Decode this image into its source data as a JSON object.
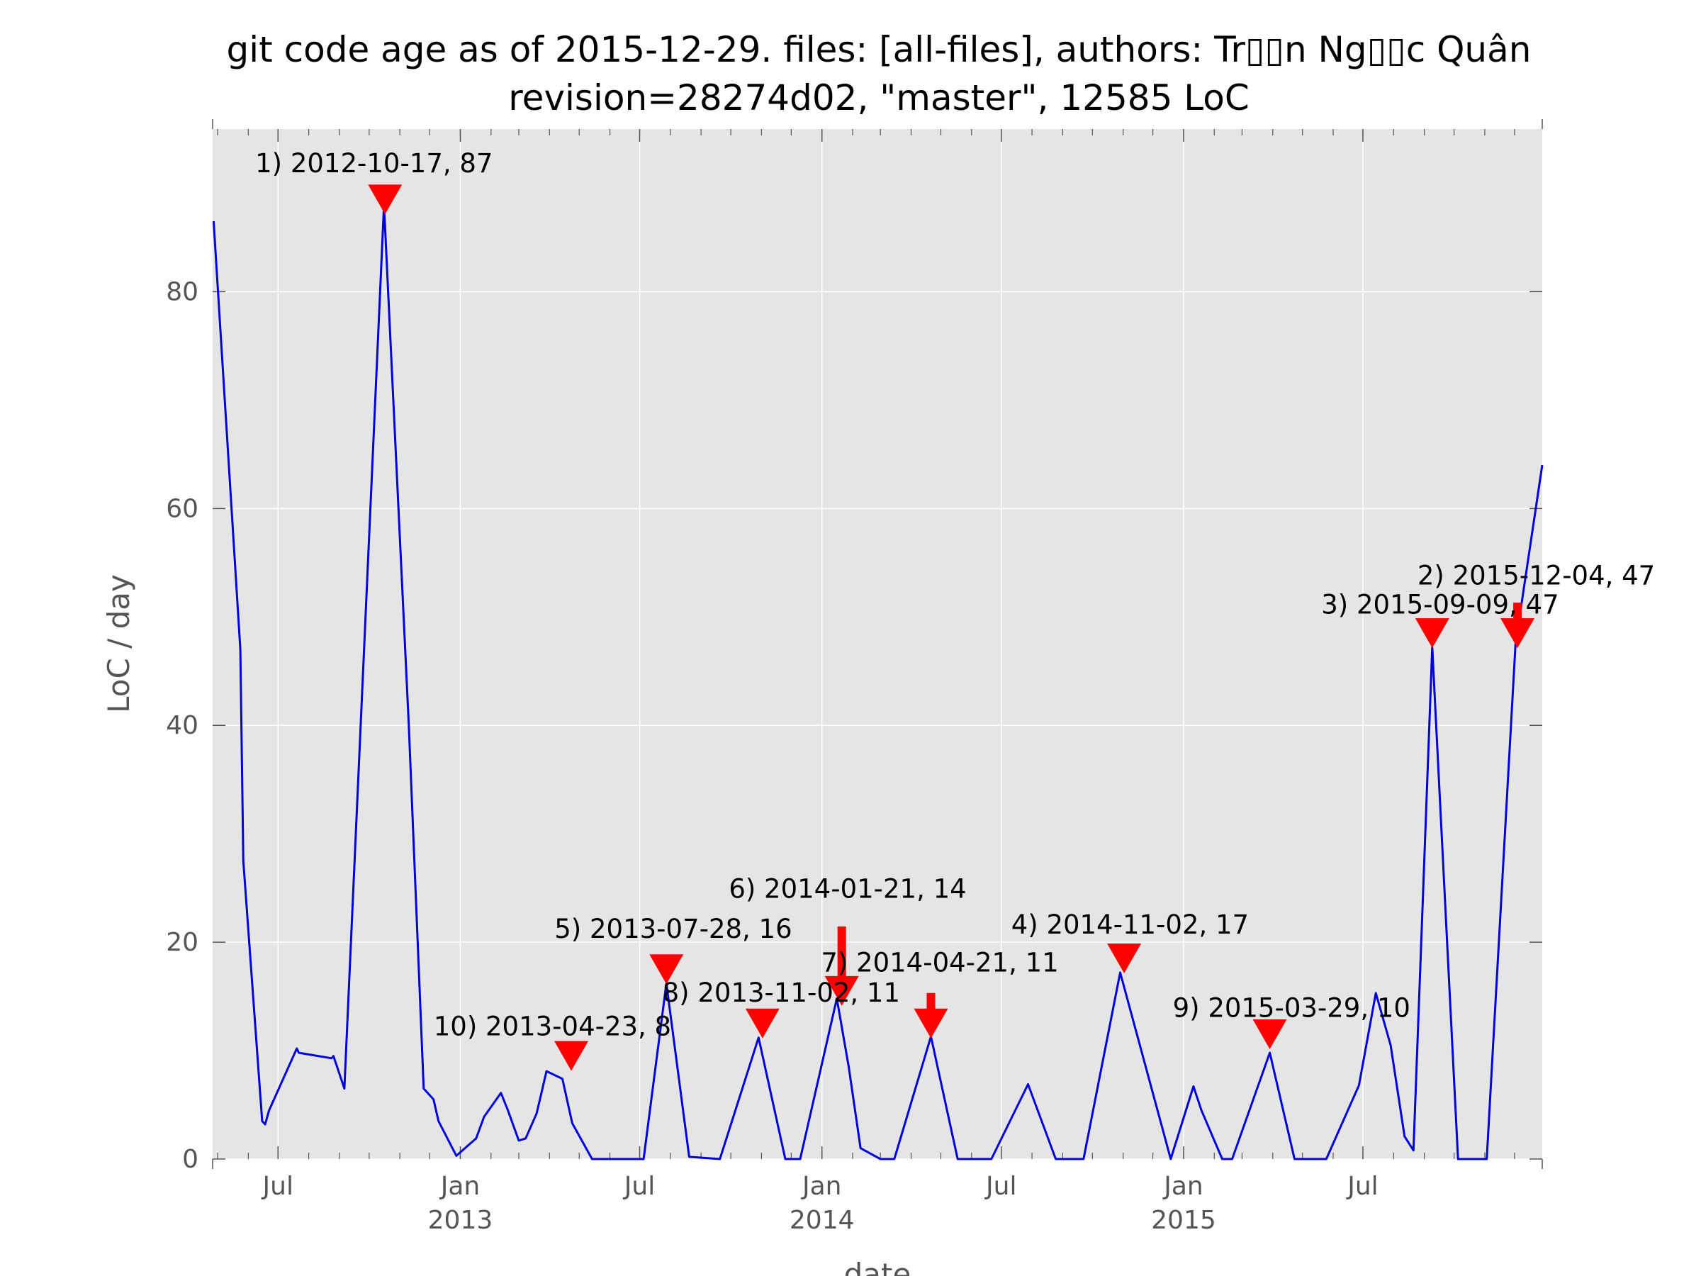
{
  "chart_data": {
    "type": "line",
    "title": "git code age as of 2015-12-29. files: [all-files], authors: Tr▯▯n Ng▯▯c Quân",
    "subtitle": "revision=28274d02, \"master\", 12585 LoC",
    "xlabel": "date",
    "ylabel": "LoC / day",
    "xlim": [
      "2012-04-26",
      "2015-12-29"
    ],
    "ylim": [
      0,
      95
    ],
    "grid": true,
    "background": "#e5e5e5",
    "line_color": "#0000dd",
    "marker_color": "#ff0000",
    "y_ticks": [
      {
        "value": 0,
        "label": "0"
      },
      {
        "value": 20,
        "label": "20"
      },
      {
        "value": 40,
        "label": "40"
      },
      {
        "value": 60,
        "label": "60"
      },
      {
        "value": 80,
        "label": "80"
      }
    ],
    "x_ticks": [
      {
        "date": "2012-07-01",
        "label": "Jul",
        "sublabel": ""
      },
      {
        "date": "2013-01-01",
        "label": "Jan",
        "sublabel": "2013"
      },
      {
        "date": "2013-07-01",
        "label": "Jul",
        "sublabel": ""
      },
      {
        "date": "2014-01-01",
        "label": "Jan",
        "sublabel": "2014"
      },
      {
        "date": "2014-07-01",
        "label": "Jul",
        "sublabel": ""
      },
      {
        "date": "2015-01-01",
        "label": "Jan",
        "sublabel": "2015"
      },
      {
        "date": "2015-07-01",
        "label": "Jul",
        "sublabel": ""
      }
    ],
    "series": [
      {
        "points": [
          [
            "2012-04-27",
            86.5
          ],
          [
            "2012-05-24",
            47
          ],
          [
            "2012-05-27",
            27.5
          ],
          [
            "2012-06-15",
            3.5
          ],
          [
            "2012-06-18",
            3.2
          ],
          [
            "2012-06-22",
            4.5
          ],
          [
            "2012-07-20",
            10.2
          ],
          [
            "2012-07-22",
            9.8
          ],
          [
            "2012-08-24",
            9.3
          ],
          [
            "2012-08-26",
            9.5
          ],
          [
            "2012-09-06",
            6.5
          ],
          [
            "2012-10-16",
            88
          ],
          [
            "2012-11-10",
            40
          ],
          [
            "2012-11-25",
            6.5
          ],
          [
            "2012-12-05",
            5.5
          ],
          [
            "2012-12-10",
            3.5
          ],
          [
            "2012-12-28",
            0.3
          ],
          [
            "2013-01-17",
            1.9
          ],
          [
            "2013-01-25",
            3.9
          ],
          [
            "2013-02-11",
            6.1
          ],
          [
            "2013-02-18",
            4.5
          ],
          [
            "2013-03-01",
            1.7
          ],
          [
            "2013-03-08",
            1.9
          ],
          [
            "2013-03-19",
            4.2
          ],
          [
            "2013-03-29",
            8.1
          ],
          [
            "2013-04-14",
            7.4
          ],
          [
            "2013-04-24",
            3.3
          ],
          [
            "2013-05-14",
            0
          ],
          [
            "2013-07-05",
            0
          ],
          [
            "2013-07-28",
            16.2
          ],
          [
            "2013-08-20",
            0.2
          ],
          [
            "2013-09-20",
            0
          ],
          [
            "2013-10-29",
            11.2
          ],
          [
            "2013-11-25",
            0
          ],
          [
            "2013-12-10",
            0
          ],
          [
            "2014-01-16",
            14.8
          ],
          [
            "2014-01-28",
            8.5
          ],
          [
            "2014-02-09",
            1
          ],
          [
            "2014-03-01",
            0
          ],
          [
            "2014-03-15",
            0
          ],
          [
            "2014-04-21",
            11.3
          ],
          [
            "2014-05-18",
            0
          ],
          [
            "2014-06-21",
            0
          ],
          [
            "2014-07-28",
            6.9
          ],
          [
            "2014-08-25",
            0
          ],
          [
            "2014-09-22",
            0
          ],
          [
            "2014-10-29",
            17.2
          ],
          [
            "2014-12-19",
            0
          ],
          [
            "2015-01-11",
            6.7
          ],
          [
            "2015-01-19",
            4.5
          ],
          [
            "2015-02-09",
            0
          ],
          [
            "2015-02-19",
            0
          ],
          [
            "2015-03-29",
            9.8
          ],
          [
            "2015-04-23",
            0
          ],
          [
            "2015-05-25",
            0
          ],
          [
            "2015-06-27",
            6.8
          ],
          [
            "2015-07-14",
            15.3
          ],
          [
            "2015-07-29",
            10.5
          ],
          [
            "2015-08-12",
            2.1
          ],
          [
            "2015-08-21",
            0.8
          ],
          [
            "2015-09-09",
            47.2
          ],
          [
            "2015-10-05",
            0
          ],
          [
            "2015-11-03",
            0
          ],
          [
            "2015-12-02",
            47.5
          ],
          [
            "2015-12-29",
            64
          ]
        ]
      }
    ],
    "annotations": [
      {
        "label": "1) 2012-10-17, 87",
        "date": "2012-10-17",
        "y": 87,
        "text_x_date": "2012-06-08",
        "text_y": 91,
        "arrow": "none"
      },
      {
        "label": "2) 2015-12-04, 47",
        "date": "2015-12-04",
        "y": 47,
        "text_x_date": "2015-08-25",
        "text_y": 53,
        "arrow": "short"
      },
      {
        "label": "3) 2015-09-09, 47",
        "date": "2015-09-09",
        "y": 47,
        "text_x_date": "2015-05-20",
        "text_y": 50.3,
        "arrow": "none"
      },
      {
        "label": "4) 2014-11-02, 17",
        "date": "2014-11-02",
        "y": 17,
        "text_x_date": "2014-07-11",
        "text_y": 20.8,
        "arrow": "none"
      },
      {
        "label": "5) 2013-07-28, 16",
        "date": "2013-07-28",
        "y": 16,
        "text_x_date": "2013-04-06",
        "text_y": 20.4,
        "arrow": "none"
      },
      {
        "label": "6) 2014-01-21, 14",
        "date": "2014-01-21",
        "y": 14,
        "text_x_date": "2013-09-29",
        "text_y": 24.1,
        "arrow": "long"
      },
      {
        "label": "7) 2014-04-21, 11",
        "date": "2014-04-21",
        "y": 11,
        "text_x_date": "2013-12-31",
        "text_y": 17.3,
        "arrow": "short"
      },
      {
        "label": "8) 2013-11-02, 11",
        "date": "2013-11-02",
        "y": 11,
        "text_x_date": "2013-07-24",
        "text_y": 14.5,
        "arrow": "none"
      },
      {
        "label": "9) 2015-03-29, 10",
        "date": "2015-03-29",
        "y": 10,
        "text_x_date": "2014-12-21",
        "text_y": 13.1,
        "arrow": "none"
      },
      {
        "label": "10) 2013-04-23, 8",
        "date": "2013-04-23",
        "y": 8,
        "text_x_date": "2012-12-05",
        "text_y": 11.4,
        "arrow": "none"
      }
    ]
  }
}
